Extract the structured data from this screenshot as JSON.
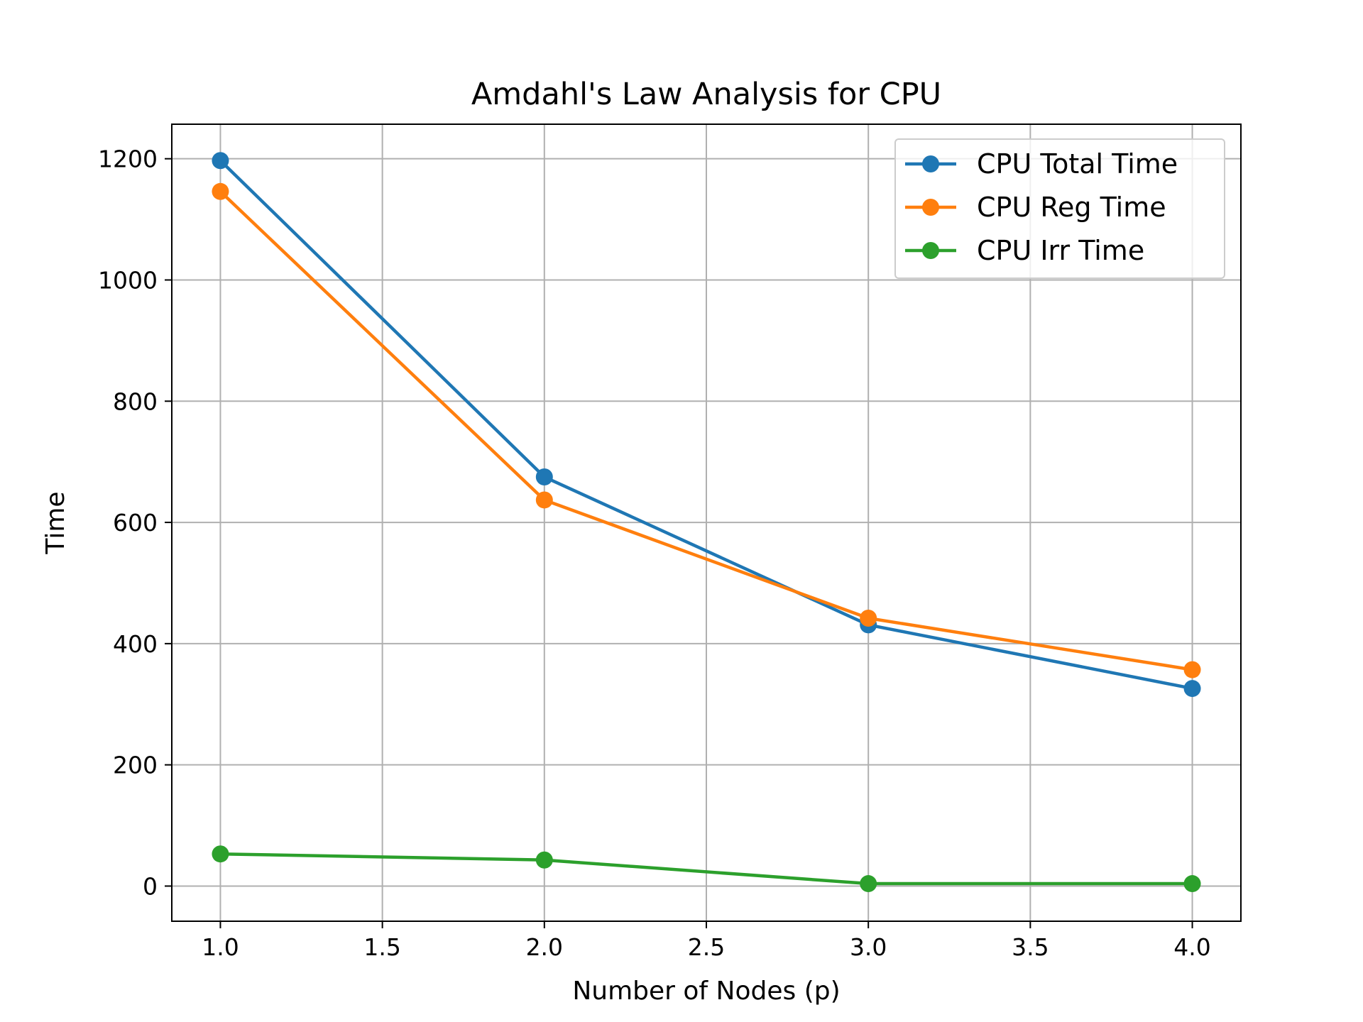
{
  "chart_data": {
    "type": "line",
    "title": "Amdahl's Law Analysis for CPU",
    "xlabel": "Number of Nodes (p)",
    "ylabel": "Time",
    "x": [
      1.0,
      2.0,
      3.0,
      4.0
    ],
    "xlim": [
      0.85,
      4.15
    ],
    "ylim": [
      -58,
      1257
    ],
    "xticks": [
      1.0,
      1.5,
      2.0,
      2.5,
      3.0,
      3.5,
      4.0
    ],
    "xtick_labels": [
      "1.0",
      "1.5",
      "2.0",
      "2.5",
      "3.0",
      "3.5",
      "4.0"
    ],
    "yticks": [
      0,
      200,
      400,
      600,
      800,
      1000,
      1200
    ],
    "ytick_labels": [
      "0",
      "200",
      "400",
      "600",
      "800",
      "1000",
      "1200"
    ],
    "grid": true,
    "legend_position": "top-right",
    "marker": "circle",
    "series": [
      {
        "name": "CPU Total Time",
        "color": "#1f77b4",
        "values": [
          1197,
          675,
          431,
          326
        ]
      },
      {
        "name": "CPU Reg Time",
        "color": "#ff7f0e",
        "values": [
          1146,
          637,
          442,
          357
        ]
      },
      {
        "name": "CPU Irr Time",
        "color": "#2ca02c",
        "values": [
          53,
          43,
          4,
          4
        ]
      }
    ]
  }
}
